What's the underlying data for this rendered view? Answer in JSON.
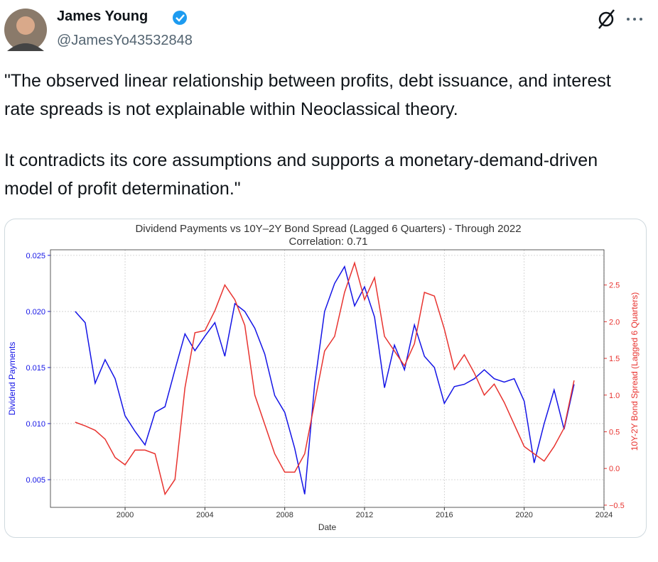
{
  "tweet": {
    "name": "James Young",
    "handle": "@JamesYo43532848",
    "paragraphs": [
      "\"The observed linear relationship between profits, debt issuance, and interest rate spreads is not explainable within Neoclassical theory.",
      "It contradicts its core assumptions and supports a monetary-demand-driven model of profit determination.\""
    ]
  },
  "chart_data": {
    "type": "line",
    "title": "Dividend Payments vs 10Y–2Y Bond Spread (Lagged 6 Quarters) - Through 2022",
    "subtitle": "Correlation: 0.71",
    "x_label": "Date",
    "y_label": "Dividend Payments",
    "y2_label": "10Y-2Y Bond Spread (Lagged 6 Quarters)",
    "x": [
      1997.5,
      1998,
      1998.5,
      1999,
      1999.5,
      2000,
      2000.5,
      2001,
      2001.5,
      2002,
      2002.5,
      2003,
      2003.5,
      2004,
      2004.5,
      2005,
      2005.5,
      2006,
      2006.5,
      2007,
      2007.5,
      2008,
      2008.5,
      2009,
      2009.5,
      2010,
      2010.5,
      2011,
      2011.5,
      2012,
      2012.5,
      2013,
      2013.5,
      2014,
      2014.5,
      2015,
      2015.5,
      2016,
      2016.5,
      2017,
      2017.5,
      2018,
      2018.5,
      2019,
      2019.5,
      2020,
      2020.5,
      2021,
      2021.5,
      2022,
      2022.5
    ],
    "series": [
      {
        "color": "#1414e6",
        "values": [
          0.02,
          0.019,
          0.0136,
          0.0157,
          0.014,
          0.0107,
          0.0093,
          0.0081,
          0.011,
          0.0115,
          0.0148,
          0.018,
          0.0165,
          0.0178,
          0.019,
          0.016,
          0.0207,
          0.02,
          0.0185,
          0.0162,
          0.0125,
          0.011,
          0.0078,
          0.0037,
          0.0135,
          0.02,
          0.0225,
          0.024,
          0.0205,
          0.0222,
          0.0195,
          0.0132,
          0.017,
          0.0148,
          0.0188,
          0.016,
          0.015,
          0.0118,
          0.0133,
          0.0135,
          0.014,
          0.0148,
          0.014,
          0.0137,
          0.014,
          0.012,
          0.0065,
          0.01,
          0.013,
          0.0095,
          0.0135
        ]
      },
      {
        "color": "#e8332f",
        "axis": "y2",
        "values": [
          0.63,
          0.58,
          0.52,
          0.4,
          0.15,
          0.05,
          0.25,
          0.25,
          0.2,
          -0.35,
          -0.15,
          1.1,
          1.85,
          1.88,
          2.15,
          2.5,
          2.3,
          1.95,
          1.0,
          0.6,
          0.2,
          -0.05,
          -0.05,
          0.2,
          0.9,
          1.6,
          1.8,
          2.4,
          2.8,
          2.3,
          2.6,
          1.8,
          1.6,
          1.4,
          1.7,
          2.4,
          2.35,
          1.9,
          1.35,
          1.55,
          1.3,
          1.0,
          1.15,
          0.9,
          0.6,
          0.3,
          0.2,
          0.1,
          0.3,
          0.55,
          1.2
        ]
      }
    ],
    "xlim": [
      1996.26,
      2024
    ],
    "xticks": [
      2000,
      2004,
      2008,
      2012,
      2016,
      2020,
      2024
    ],
    "ylim": [
      0.00253,
      0.0255
    ],
    "yticks": [
      0.005,
      {
        "value": 0.01,
        "label": "0.010"
      },
      0.015,
      {
        "value": 0.02,
        "label": "0.020"
      },
      0.025
    ],
    "y2lim": [
      -0.53,
      2.98
    ],
    "y2ticks": [
      {
        "value": -0.5,
        "label": "−0.5"
      },
      {
        "value": 0,
        "label": "0.0"
      },
      0.5,
      {
        "value": 1,
        "label": "1.0"
      },
      1.5,
      {
        "value": 2,
        "label": "2.0"
      },
      2.5
    ],
    "grid": true
  }
}
